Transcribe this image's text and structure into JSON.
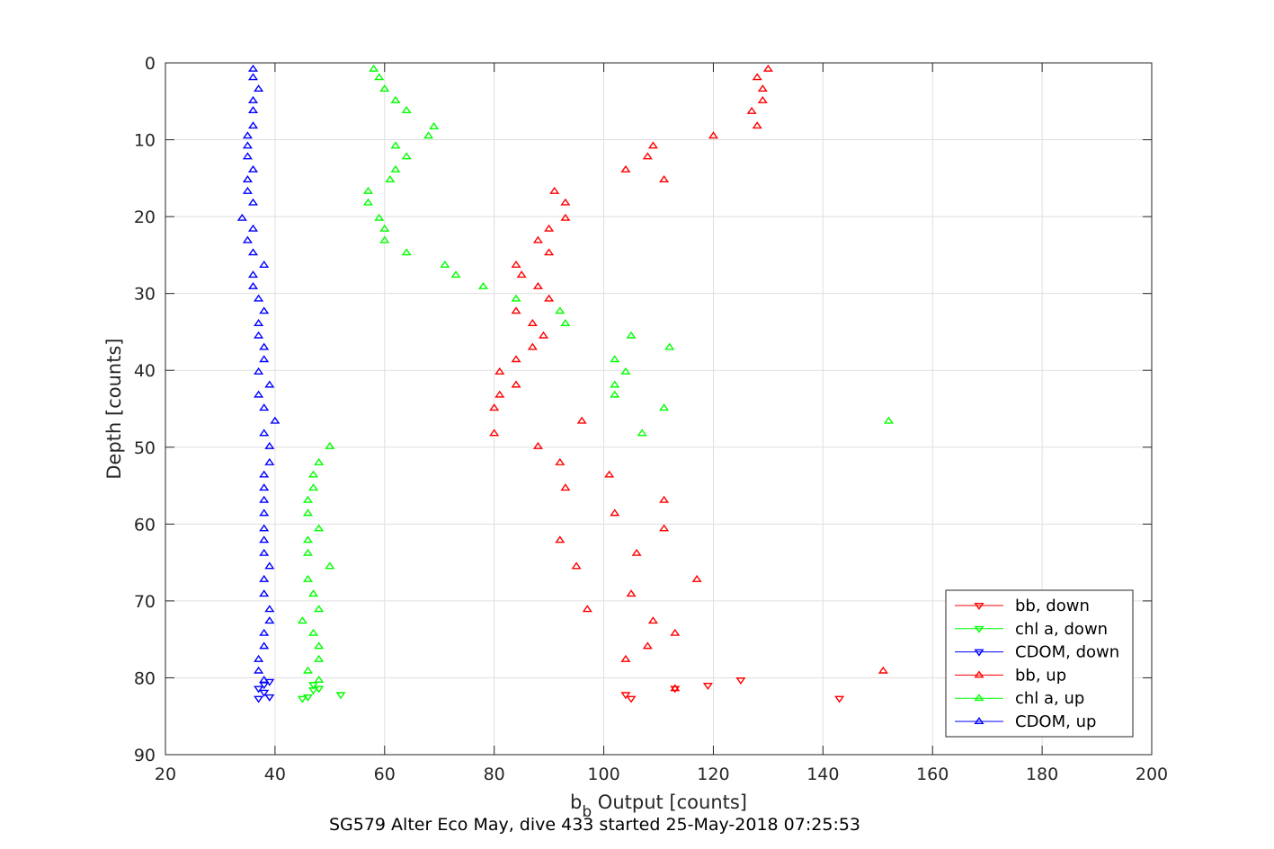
{
  "chart_data": {
    "type": "scatter",
    "title": "",
    "xlabel_main": "b",
    "xlabel_sub": "b",
    "xlabel_rest": " Output [counts]",
    "ylabel": "Depth [counts]",
    "caption": "SG579 Alter Eco May, dive 433 started 25-May-2018 07:25:53",
    "xlim": [
      20,
      200
    ],
    "ylim": [
      0,
      90
    ],
    "y_reversed": true,
    "grid": true,
    "legend_position": "bottom-right",
    "xticks": [
      20,
      40,
      60,
      80,
      100,
      120,
      140,
      160,
      180,
      200
    ],
    "yticks": [
      0,
      10,
      20,
      30,
      40,
      50,
      60,
      70,
      80,
      90
    ],
    "series": [
      {
        "name": "bb, down",
        "color": "#ff0000",
        "marker": "triangle-down",
        "points": [
          [
            104,
            82.2
          ],
          [
            105,
            82.7
          ],
          [
            113,
            81.4
          ],
          [
            119,
            81
          ],
          [
            125,
            80.3
          ],
          [
            143,
            82.7
          ]
        ]
      },
      {
        "name": "chl a, down",
        "color": "#00ff00",
        "marker": "triangle-down",
        "points": [
          [
            45,
            82.7
          ],
          [
            46,
            82.5
          ],
          [
            47,
            81.6
          ],
          [
            48,
            81.4
          ],
          [
            47,
            80.9
          ],
          [
            52,
            82.2
          ]
        ]
      },
      {
        "name": "CDOM, down",
        "color": "#0000ff",
        "marker": "triangle-down",
        "points": [
          [
            37,
            82.7
          ],
          [
            38,
            81.9
          ],
          [
            39,
            82.5
          ],
          [
            37,
            81.4
          ],
          [
            38,
            80.9
          ],
          [
            39,
            80.5
          ]
        ]
      },
      {
        "name": "bb, up",
        "color": "#ff0000",
        "marker": "triangle-up",
        "points": [
          [
            130,
            0.8
          ],
          [
            128,
            1.9
          ],
          [
            129,
            3.4
          ],
          [
            129,
            4.9
          ],
          [
            127,
            6.3
          ],
          [
            128,
            8.2
          ],
          [
            120,
            9.5
          ],
          [
            109,
            10.8
          ],
          [
            108,
            12.2
          ],
          [
            104,
            13.9
          ],
          [
            111,
            15.2
          ],
          [
            91,
            16.7
          ],
          [
            93,
            18.2
          ],
          [
            93,
            20.2
          ],
          [
            90,
            21.6
          ],
          [
            88,
            23.1
          ],
          [
            90,
            24.7
          ],
          [
            84,
            26.3
          ],
          [
            85,
            27.6
          ],
          [
            88,
            29.1
          ],
          [
            90,
            30.7
          ],
          [
            84,
            32.3
          ],
          [
            87,
            33.9
          ],
          [
            89,
            35.5
          ],
          [
            87,
            37
          ],
          [
            84,
            38.6
          ],
          [
            81,
            40.2
          ],
          [
            84,
            41.9
          ],
          [
            81,
            43.2
          ],
          [
            80,
            44.9
          ],
          [
            96,
            46.6
          ],
          [
            80,
            48.2
          ],
          [
            88,
            49.9
          ],
          [
            92,
            52
          ],
          [
            101,
            53.6
          ],
          [
            93,
            55.3
          ],
          [
            111,
            56.9
          ],
          [
            102,
            58.6
          ],
          [
            111,
            60.6
          ],
          [
            92,
            62.1
          ],
          [
            106,
            63.8
          ],
          [
            95,
            65.5
          ],
          [
            117,
            67.2
          ],
          [
            105,
            69.1
          ],
          [
            97,
            71.1
          ],
          [
            109,
            72.6
          ],
          [
            113,
            74.2
          ],
          [
            108,
            75.9
          ],
          [
            104,
            77.6
          ],
          [
            151,
            79.1
          ],
          [
            113,
            81.4
          ]
        ]
      },
      {
        "name": "chl a, up",
        "color": "#00ff00",
        "marker": "triangle-up",
        "points": [
          [
            58,
            0.8
          ],
          [
            59,
            1.9
          ],
          [
            60,
            3.4
          ],
          [
            62,
            4.9
          ],
          [
            64,
            6.2
          ],
          [
            69,
            8.3
          ],
          [
            68,
            9.5
          ],
          [
            62,
            10.8
          ],
          [
            64,
            12.2
          ],
          [
            62,
            13.9
          ],
          [
            61,
            15.2
          ],
          [
            57,
            16.7
          ],
          [
            57,
            18.2
          ],
          [
            59,
            20.2
          ],
          [
            60,
            21.6
          ],
          [
            60,
            23.1
          ],
          [
            64,
            24.7
          ],
          [
            71,
            26.3
          ],
          [
            73,
            27.6
          ],
          [
            78,
            29.1
          ],
          [
            84,
            30.7
          ],
          [
            92,
            32.3
          ],
          [
            93,
            33.9
          ],
          [
            105,
            35.5
          ],
          [
            112,
            37
          ],
          [
            102,
            38.6
          ],
          [
            104,
            40.2
          ],
          [
            102,
            41.9
          ],
          [
            102,
            43.2
          ],
          [
            111,
            44.9
          ],
          [
            152,
            46.6
          ],
          [
            107,
            48.2
          ],
          [
            50,
            49.9
          ],
          [
            48,
            52
          ],
          [
            47,
            53.6
          ],
          [
            47,
            55.3
          ],
          [
            46,
            56.9
          ],
          [
            46,
            58.6
          ],
          [
            48,
            60.6
          ],
          [
            46,
            62.1
          ],
          [
            46,
            63.8
          ],
          [
            50,
            65.5
          ],
          [
            46,
            67.2
          ],
          [
            47,
            69.1
          ],
          [
            48,
            71.1
          ],
          [
            45,
            72.6
          ],
          [
            47,
            74.2
          ],
          [
            48,
            75.9
          ],
          [
            48,
            77.6
          ],
          [
            46,
            79.1
          ],
          [
            48,
            80.3
          ]
        ]
      },
      {
        "name": "CDOM, up",
        "color": "#0000ff",
        "marker": "triangle-up",
        "points": [
          [
            36,
            0.8
          ],
          [
            36,
            1.9
          ],
          [
            37,
            3.4
          ],
          [
            36,
            4.9
          ],
          [
            36,
            6.2
          ],
          [
            36,
            8.2
          ],
          [
            35,
            9.5
          ],
          [
            35,
            10.8
          ],
          [
            35,
            12.2
          ],
          [
            36,
            13.9
          ],
          [
            35,
            15.2
          ],
          [
            35,
            16.7
          ],
          [
            36,
            18.2
          ],
          [
            34,
            20.2
          ],
          [
            36,
            21.6
          ],
          [
            35,
            23.1
          ],
          [
            36,
            24.7
          ],
          [
            38,
            26.3
          ],
          [
            36,
            27.6
          ],
          [
            36,
            29.1
          ],
          [
            37,
            30.7
          ],
          [
            38,
            32.3
          ],
          [
            37,
            33.9
          ],
          [
            37,
            35.5
          ],
          [
            38,
            37
          ],
          [
            38,
            38.6
          ],
          [
            37,
            40.2
          ],
          [
            39,
            41.9
          ],
          [
            37,
            43.2
          ],
          [
            38,
            44.9
          ],
          [
            40,
            46.6
          ],
          [
            38,
            48.2
          ],
          [
            39,
            49.9
          ],
          [
            39,
            52
          ],
          [
            38,
            53.6
          ],
          [
            38,
            55.3
          ],
          [
            38,
            56.9
          ],
          [
            38,
            58.6
          ],
          [
            38,
            60.6
          ],
          [
            38,
            62.1
          ],
          [
            38,
            63.8
          ],
          [
            39,
            65.5
          ],
          [
            38,
            67.2
          ],
          [
            38,
            69.1
          ],
          [
            39,
            71.1
          ],
          [
            39,
            72.6
          ],
          [
            38,
            74.2
          ],
          [
            38,
            75.9
          ],
          [
            37,
            77.6
          ],
          [
            37,
            79.1
          ],
          [
            38,
            80.3
          ]
        ]
      }
    ]
  }
}
